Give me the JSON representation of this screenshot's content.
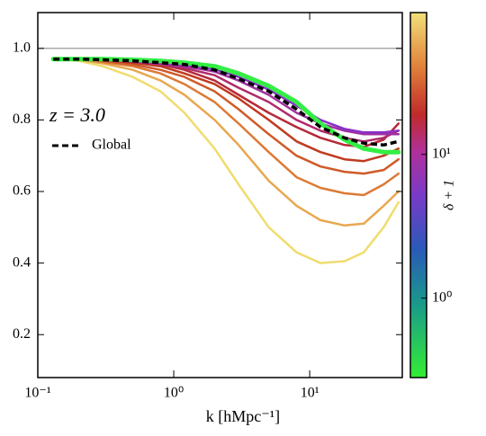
{
  "chart_data": {
    "type": "line",
    "xlabel": "k [hMpc⁻¹]",
    "annotation": "z = 3.0",
    "log_x": true,
    "xlim": [
      0.1,
      48
    ],
    "xticks": [
      {
        "value": 0.1,
        "label": "10⁻¹"
      },
      {
        "value": 1,
        "label": "10⁰"
      },
      {
        "value": 10,
        "label": "10¹"
      }
    ],
    "ylim": [
      0.08,
      1.1
    ],
    "yticks": [
      0.2,
      0.4,
      0.6,
      0.8,
      {
        "value": 1,
        "label": "1.0"
      }
    ],
    "reference_line": 1,
    "reference_color": "#aaaaaa",
    "x": [
      0.13,
      0.2,
      0.3,
      0.5,
      0.8,
      1.2,
      2,
      3,
      5,
      8,
      12,
      18,
      25,
      35,
      45
    ],
    "series": [
      {
        "color": "#f0dc6e",
        "values": [
          0.97,
          0.965,
          0.95,
          0.92,
          0.88,
          0.82,
          0.72,
          0.62,
          0.5,
          0.43,
          0.4,
          0.405,
          0.43,
          0.5,
          0.57
        ]
      },
      {
        "color": "#e8a850",
        "values": [
          0.97,
          0.968,
          0.958,
          0.94,
          0.91,
          0.87,
          0.8,
          0.73,
          0.63,
          0.56,
          0.52,
          0.505,
          0.51,
          0.56,
          0.6
        ]
      },
      {
        "color": "#dd7a35",
        "values": [
          0.97,
          0.97,
          0.962,
          0.95,
          0.93,
          0.9,
          0.85,
          0.79,
          0.71,
          0.64,
          0.61,
          0.595,
          0.59,
          0.62,
          0.65
        ]
      },
      {
        "color": "#cf5a28",
        "values": [
          0.97,
          0.97,
          0.965,
          0.955,
          0.94,
          0.92,
          0.88,
          0.83,
          0.76,
          0.7,
          0.67,
          0.655,
          0.65,
          0.66,
          0.69
        ]
      },
      {
        "color": "#c03a20",
        "values": [
          0.97,
          0.97,
          0.967,
          0.96,
          0.95,
          0.93,
          0.9,
          0.86,
          0.8,
          0.74,
          0.71,
          0.69,
          0.685,
          0.7,
          0.72
        ]
      },
      {
        "color": "#b52a3a",
        "values": [
          0.97,
          0.97,
          0.968,
          0.962,
          0.955,
          0.94,
          0.91,
          0.87,
          0.82,
          0.78,
          0.75,
          0.73,
          0.725,
          0.745,
          0.79
        ]
      },
      {
        "color": "#b02a6a",
        "values": [
          0.97,
          0.97,
          0.968,
          0.963,
          0.955,
          0.945,
          0.925,
          0.89,
          0.85,
          0.8,
          0.77,
          0.75,
          0.74,
          0.75,
          0.77
        ]
      },
      {
        "color": "#a030a0",
        "values": [
          0.97,
          0.97,
          0.968,
          0.964,
          0.958,
          0.95,
          0.935,
          0.91,
          0.87,
          0.82,
          0.79,
          0.77,
          0.76,
          0.76,
          0.76
        ]
      },
      {
        "color": "#8a30c8",
        "values": [
          0.97,
          0.97,
          0.969,
          0.966,
          0.962,
          0.955,
          0.942,
          0.92,
          0.885,
          0.84,
          0.8,
          0.775,
          0.765,
          0.765,
          0.77
        ]
      },
      {
        "color": "#33ee44",
        "linewidth": 5,
        "values": [
          0.97,
          0.97,
          0.97,
          0.968,
          0.965,
          0.96,
          0.95,
          0.93,
          0.895,
          0.85,
          0.79,
          0.745,
          0.72,
          0.71,
          0.71
        ]
      },
      {
        "name": "Global",
        "color": "#000000",
        "dash": true,
        "values": [
          0.97,
          0.97,
          0.968,
          0.965,
          0.96,
          0.955,
          0.94,
          0.915,
          0.88,
          0.83,
          0.78,
          0.75,
          0.735,
          0.73,
          0.74
        ]
      }
    ],
    "colorbar": {
      "label": "δ + 1",
      "log": true,
      "clim": [
        0.28,
        97
      ],
      "cticks": [
        {
          "value": 1,
          "label": "10⁰"
        },
        {
          "value": 10,
          "label": "10¹"
        }
      ]
    }
  }
}
